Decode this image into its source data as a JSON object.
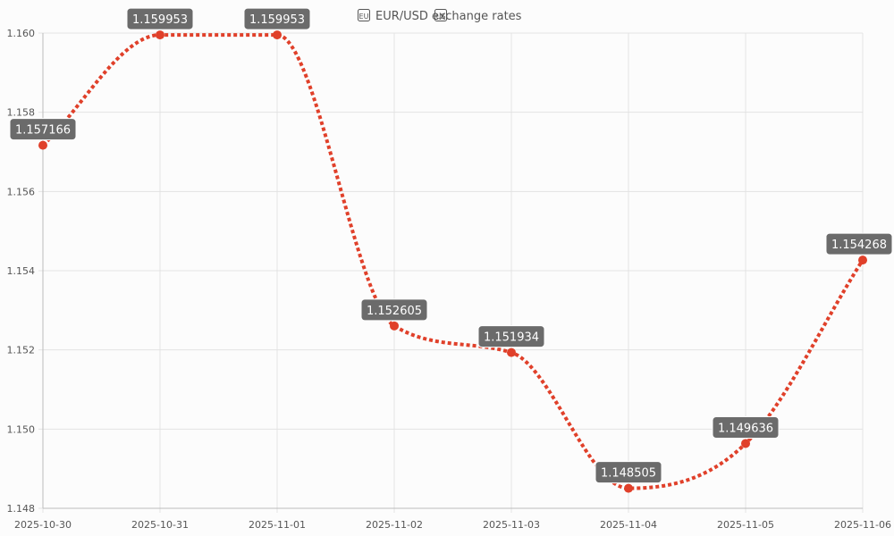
{
  "chart_data": {
    "type": "line",
    "title": "EUR/USD exchange rates",
    "title_icons": [
      "eu-flag-icon",
      "us-flag-icon"
    ],
    "x": [
      "2025-10-30",
      "2025-10-31",
      "2025-11-01",
      "2025-11-02",
      "2025-11-03",
      "2025-11-04",
      "2025-11-05",
      "2025-11-06"
    ],
    "series": [
      {
        "values": [
          1.157166,
          1.159953,
          1.159953,
          1.152605,
          1.151934,
          1.148505,
          1.149636,
          1.154268
        ],
        "data_labels": [
          "1.157166",
          "1.159953",
          "1.159953",
          "1.152605",
          "1.151934",
          "1.148505",
          "1.149636",
          "1.154268"
        ],
        "color": "#e0402a",
        "line_style": "dotted",
        "smooth": true
      }
    ],
    "ylim": [
      1.148,
      1.16
    ],
    "yticks": [
      "1.148",
      "1.150",
      "1.152",
      "1.154",
      "1.156",
      "1.158",
      "1.160"
    ],
    "grid": true,
    "legend": "none",
    "colors": {
      "grid": "#e3e3e3",
      "label_bg": "#6b6b6b",
      "label_text": "#ffffff",
      "axis_text": "#555555",
      "background": "#fcfcfc"
    }
  }
}
